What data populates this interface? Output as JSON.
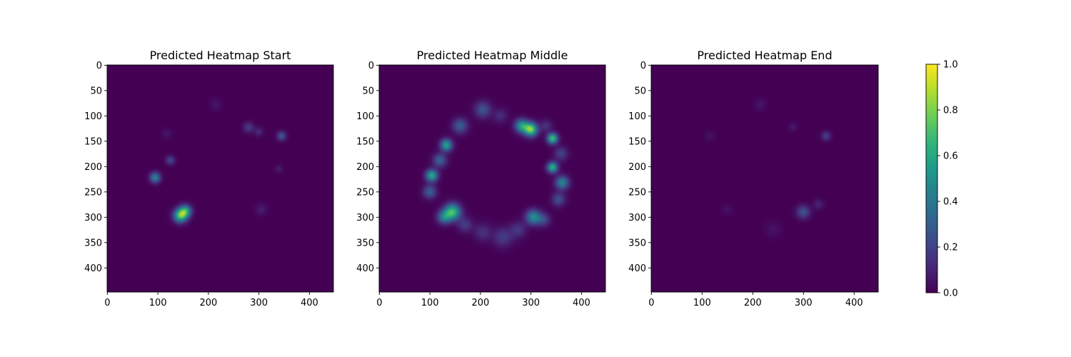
{
  "chart_data": [
    {
      "type": "heatmap",
      "title": "Predicted Heatmap Start",
      "xlabel": "",
      "ylabel": "",
      "xlim": [
        0,
        448
      ],
      "ylim": [
        448,
        0
      ],
      "x_ticks": [
        0,
        100,
        200,
        300,
        400
      ],
      "y_ticks": [
        0,
        50,
        100,
        150,
        200,
        250,
        300,
        350,
        400
      ],
      "colormap": "viridis",
      "background_value": 0.0,
      "blobs": [
        {
          "x": 145,
          "y": 297,
          "value": 0.72,
          "spread": 9
        },
        {
          "x": 155,
          "y": 288,
          "value": 0.55,
          "spread": 8
        },
        {
          "x": 95,
          "y": 222,
          "value": 0.45,
          "spread": 7
        },
        {
          "x": 125,
          "y": 188,
          "value": 0.22,
          "spread": 6
        },
        {
          "x": 345,
          "y": 140,
          "value": 0.28,
          "spread": 6
        },
        {
          "x": 280,
          "y": 123,
          "value": 0.18,
          "spread": 7
        },
        {
          "x": 300,
          "y": 132,
          "value": 0.12,
          "spread": 6
        },
        {
          "x": 305,
          "y": 285,
          "value": 0.08,
          "spread": 8
        },
        {
          "x": 215,
          "y": 78,
          "value": 0.06,
          "spread": 8
        },
        {
          "x": 340,
          "y": 205,
          "value": 0.08,
          "spread": 5
        },
        {
          "x": 118,
          "y": 135,
          "value": 0.06,
          "spread": 7
        }
      ]
    },
    {
      "type": "heatmap",
      "title": "Predicted Heatmap Middle",
      "xlabel": "",
      "ylabel": "",
      "xlim": [
        0,
        448
      ],
      "ylim": [
        448,
        0
      ],
      "x_ticks": [
        0,
        100,
        200,
        300,
        400
      ],
      "y_ticks": [
        0,
        50,
        100,
        150,
        200,
        250,
        300,
        350,
        400
      ],
      "colormap": "viridis",
      "background_value": 0.0,
      "blobs": [
        {
          "x": 300,
          "y": 127,
          "value": 0.82,
          "spread": 9
        },
        {
          "x": 282,
          "y": 120,
          "value": 0.55,
          "spread": 9
        },
        {
          "x": 343,
          "y": 145,
          "value": 0.72,
          "spread": 7
        },
        {
          "x": 343,
          "y": 202,
          "value": 0.65,
          "spread": 7
        },
        {
          "x": 362,
          "y": 232,
          "value": 0.45,
          "spread": 9
        },
        {
          "x": 133,
          "y": 158,
          "value": 0.58,
          "spread": 8
        },
        {
          "x": 104,
          "y": 218,
          "value": 0.62,
          "spread": 8
        },
        {
          "x": 145,
          "y": 290,
          "value": 0.7,
          "spread": 11
        },
        {
          "x": 128,
          "y": 300,
          "value": 0.4,
          "spread": 9
        },
        {
          "x": 305,
          "y": 300,
          "value": 0.48,
          "spread": 10
        },
        {
          "x": 325,
          "y": 305,
          "value": 0.22,
          "spread": 9
        },
        {
          "x": 160,
          "y": 120,
          "value": 0.3,
          "spread": 10
        },
        {
          "x": 205,
          "y": 88,
          "value": 0.26,
          "spread": 11
        },
        {
          "x": 120,
          "y": 188,
          "value": 0.32,
          "spread": 9
        },
        {
          "x": 100,
          "y": 250,
          "value": 0.3,
          "spread": 9
        },
        {
          "x": 245,
          "y": 340,
          "value": 0.18,
          "spread": 13
        },
        {
          "x": 205,
          "y": 330,
          "value": 0.14,
          "spread": 12
        },
        {
          "x": 355,
          "y": 265,
          "value": 0.24,
          "spread": 9
        },
        {
          "x": 360,
          "y": 175,
          "value": 0.2,
          "spread": 9
        },
        {
          "x": 240,
          "y": 100,
          "value": 0.12,
          "spread": 10
        },
        {
          "x": 170,
          "y": 315,
          "value": 0.18,
          "spread": 10
        },
        {
          "x": 275,
          "y": 325,
          "value": 0.16,
          "spread": 11
        },
        {
          "x": 330,
          "y": 120,
          "value": 0.14,
          "spread": 8
        }
      ]
    },
    {
      "type": "heatmap",
      "title": "Predicted Heatmap End",
      "xlabel": "",
      "ylabel": "",
      "xlim": [
        0,
        448
      ],
      "ylim": [
        448,
        0
      ],
      "x_ticks": [
        0,
        100,
        200,
        300,
        400
      ],
      "y_ticks": [
        0,
        50,
        100,
        150,
        200,
        250,
        300,
        350,
        400
      ],
      "colormap": "viridis",
      "background_value": 0.0,
      "blobs": [
        {
          "x": 300,
          "y": 290,
          "value": 0.25,
          "spread": 9
        },
        {
          "x": 345,
          "y": 140,
          "value": 0.2,
          "spread": 6
        },
        {
          "x": 330,
          "y": 275,
          "value": 0.1,
          "spread": 7
        },
        {
          "x": 280,
          "y": 122,
          "value": 0.07,
          "spread": 6
        },
        {
          "x": 215,
          "y": 78,
          "value": 0.06,
          "spread": 8
        },
        {
          "x": 240,
          "y": 325,
          "value": 0.05,
          "spread": 11
        },
        {
          "x": 115,
          "y": 140,
          "value": 0.05,
          "spread": 7
        },
        {
          "x": 150,
          "y": 285,
          "value": 0.04,
          "spread": 8
        }
      ]
    }
  ],
  "colorbar": {
    "min": 0.0,
    "max": 1.0,
    "ticks": [
      "0.0",
      "0.2",
      "0.4",
      "0.6",
      "0.8",
      "1.0"
    ]
  }
}
